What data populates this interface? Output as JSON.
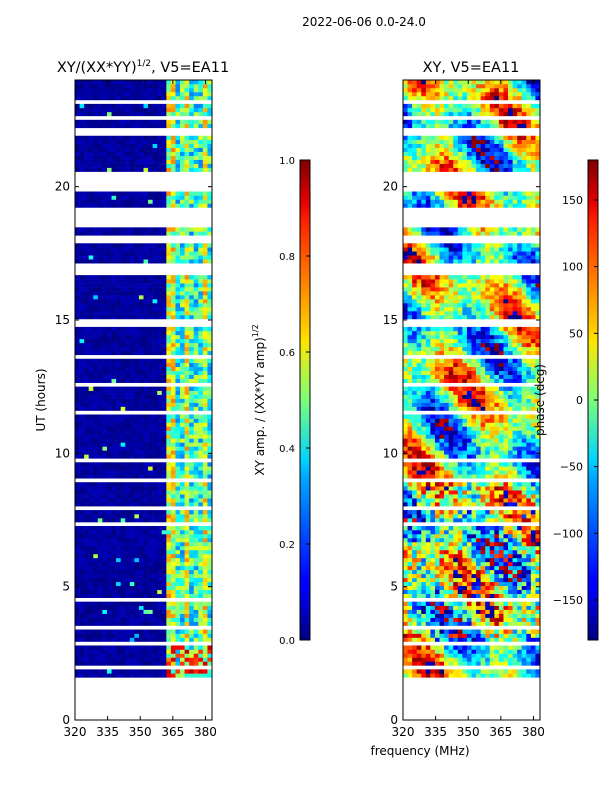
{
  "figure": {
    "suptitle": "2022-06-06 0.0-24.0",
    "xlabel": "frequency (MHz)",
    "ylabel": "UT (hours)"
  },
  "chart_data": [
    {
      "type": "heatmap",
      "title_main": "XY/(XX*YY)",
      "title_exp": "1/2",
      "title_rest": ", V5=EA11",
      "xlim": [
        320,
        383
      ],
      "ylim": [
        0,
        24
      ],
      "xticks": [
        "320",
        "335",
        "350",
        "365",
        "380"
      ],
      "xtick_values": [
        320,
        335,
        350,
        365,
        380
      ],
      "yticks": [
        "0",
        "5",
        "10",
        "15",
        "20"
      ],
      "ytick_values": [
        0,
        5,
        10,
        15,
        20
      ],
      "data_ut_range": [
        1.6,
        24.0
      ],
      "strong_signal_freq_range": [
        362,
        383
      ],
      "colorbar": {
        "label_main": "XY amp. / (XX*YY amp)",
        "label_exp": "1/2",
        "range": [
          0.0,
          1.0
        ],
        "ticks": [
          "0.0",
          "0.2",
          "0.4",
          "0.6",
          "0.8",
          "1.0"
        ],
        "tick_values": [
          0.0,
          0.2,
          0.4,
          0.6,
          0.8,
          1.0
        ],
        "colormap": "jet"
      }
    },
    {
      "type": "heatmap",
      "title": "XY, V5=EA11",
      "xlim": [
        320,
        383
      ],
      "ylim": [
        0,
        24
      ],
      "xticks": [
        "320",
        "335",
        "350",
        "365",
        "380"
      ],
      "xtick_values": [
        320,
        335,
        350,
        365,
        380
      ],
      "yticks": [
        "0",
        "5",
        "10",
        "15",
        "20"
      ],
      "ytick_values": [
        0,
        5,
        10,
        15,
        20
      ],
      "data_ut_range": [
        1.6,
        24.0
      ],
      "colorbar": {
        "label": "phase (deg)",
        "range": [
          -180,
          180
        ],
        "ticks": [
          "−150",
          "−100",
          "−50",
          "0",
          "50",
          "100",
          "150"
        ],
        "tick_values": [
          -150,
          -100,
          -50,
          0,
          50,
          100,
          150
        ],
        "colormap": "jet"
      }
    }
  ],
  "gaps_ut": [
    [
      1.95,
      2.0
    ],
    [
      2.35,
      2.4
    ],
    [
      2.82,
      2.88
    ],
    [
      3.4,
      3.6
    ],
    [
      4.5,
      4.55
    ],
    [
      5.0,
      5.06
    ],
    [
      5.6,
      5.65
    ],
    [
      6.2,
      6.25
    ],
    [
      6.8,
      6.85
    ],
    [
      7.3,
      7.35
    ],
    [
      7.9,
      7.95
    ],
    [
      8.3,
      8.35
    ],
    [
      8.85,
      9.05
    ],
    [
      9.7,
      9.78
    ],
    [
      10.2,
      10.26
    ],
    [
      10.7,
      10.78
    ],
    [
      11.5,
      11.55
    ],
    [
      12.45,
      12.6
    ],
    [
      13.1,
      13.15
    ],
    [
      13.6,
      13.66
    ],
    [
      14.3,
      14.35
    ],
    [
      14.8,
      15.1
    ],
    [
      15.8,
      15.85
    ],
    [
      16.7,
      17.1
    ],
    [
      17.55,
      17.6
    ],
    [
      17.9,
      18.15
    ],
    [
      18.45,
      19.2
    ],
    [
      19.75,
      20.5
    ],
    [
      20.85,
      20.9
    ],
    [
      21.25,
      21.35
    ],
    [
      21.85,
      22.15
    ],
    [
      22.55,
      22.6
    ],
    [
      22.9,
      22.95
    ],
    [
      23.15,
      23.2
    ],
    [
      23.55,
      23.62
    ]
  ]
}
